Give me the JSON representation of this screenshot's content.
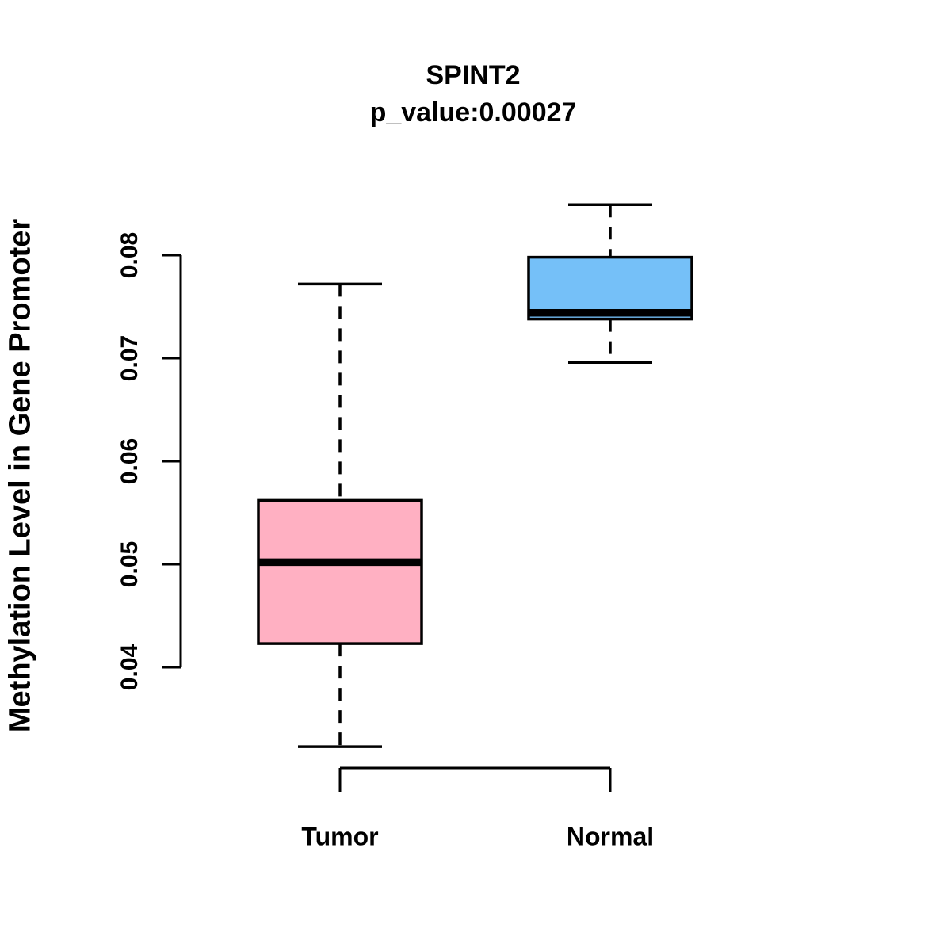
{
  "chart_data": {
    "type": "boxplot",
    "title": "SPINT2",
    "subtitle": "p_value:0.00027",
    "ylabel": "Methylation Level in Gene Promoter",
    "xlabel": "",
    "categories": [
      "Tumor",
      "Normal"
    ],
    "ytick_labels": [
      "0.04",
      "0.05",
      "0.06",
      "0.07",
      "0.08"
    ],
    "ylim": [
      0.04,
      0.08
    ],
    "grid": false,
    "legend": "none",
    "background_color": "#FFFFFF",
    "stroke_color": "#000000",
    "series": [
      {
        "name": "Tumor",
        "fill_color": "#FFB0C2",
        "whisker_low": 0.0323,
        "q1": 0.0423,
        "median": 0.0502,
        "q3": 0.0562,
        "whisker_high": 0.0772
      },
      {
        "name": "Normal",
        "fill_color": "#75C0F8",
        "whisker_low": 0.0696,
        "q1": 0.0738,
        "median": 0.0744,
        "q3": 0.0798,
        "whisker_high": 0.0849
      }
    ]
  }
}
